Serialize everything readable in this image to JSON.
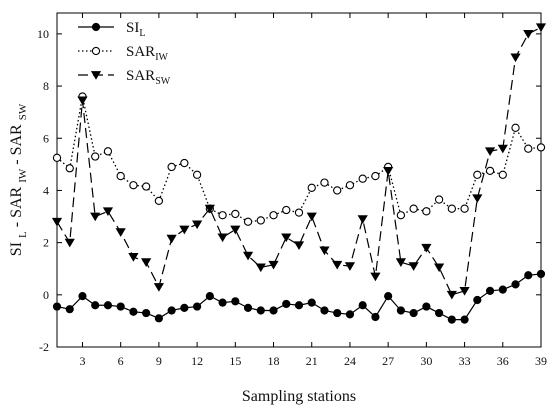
{
  "chart_data": {
    "type": "line",
    "xlabel": "Sampling stations",
    "ylabel_parts": {
      "si": "SI",
      "si_sub": "L",
      "sep1": " - SAR",
      "iw_sub": "IW",
      "sep2": " - SAR",
      "sw_sub": "SW"
    },
    "xlim": [
      1,
      39
    ],
    "ylim": [
      -2,
      10.8
    ],
    "xticks": [
      3,
      6,
      9,
      12,
      15,
      18,
      21,
      24,
      27,
      30,
      33,
      36,
      39
    ],
    "yticks": [
      -2,
      0,
      2,
      4,
      6,
      8,
      10
    ],
    "x": [
      1,
      2,
      3,
      4,
      5,
      6,
      7,
      8,
      9,
      10,
      11,
      12,
      13,
      14,
      15,
      16,
      17,
      18,
      19,
      20,
      21,
      22,
      23,
      24,
      25,
      26,
      27,
      28,
      29,
      30,
      31,
      32,
      33,
      34,
      35,
      36,
      37,
      38,
      39
    ],
    "legend_position": "top-left",
    "series": [
      {
        "name_main": "SI",
        "name_sub": "L",
        "style": "solid",
        "marker": "filled-circle",
        "color": "#000000",
        "values": [
          -0.45,
          -0.55,
          -0.05,
          -0.4,
          -0.4,
          -0.45,
          -0.65,
          -0.7,
          -0.9,
          -0.6,
          -0.5,
          -0.45,
          -0.05,
          -0.3,
          -0.25,
          -0.5,
          -0.6,
          -0.6,
          -0.35,
          -0.4,
          -0.3,
          -0.6,
          -0.7,
          -0.75,
          -0.4,
          -0.85,
          -0.05,
          -0.6,
          -0.7,
          -0.45,
          -0.7,
          -0.95,
          -0.95,
          -0.2,
          0.15,
          0.2,
          0.4,
          0.75,
          0.8
        ]
      },
      {
        "name_main": "SAR",
        "name_sub": "IW",
        "style": "dotted",
        "marker": "open-circle",
        "color": "#000000",
        "values": [
          5.25,
          4.85,
          7.6,
          5.3,
          5.5,
          4.55,
          4.2,
          4.15,
          3.6,
          4.9,
          5.05,
          4.6,
          3.3,
          3.05,
          3.1,
          2.8,
          2.85,
          3.05,
          3.25,
          3.15,
          4.1,
          4.3,
          4.0,
          4.2,
          4.45,
          4.55,
          4.9,
          3.05,
          3.3,
          3.2,
          3.65,
          3.3,
          3.3,
          4.6,
          4.75,
          4.6,
          6.4,
          5.6,
          5.65
        ]
      },
      {
        "name_main": "SAR",
        "name_sub": "SW",
        "style": "dashed",
        "marker": "filled-triangle-down",
        "color": "#000000",
        "values": [
          2.8,
          2.0,
          7.45,
          3.0,
          3.2,
          2.4,
          1.45,
          1.25,
          0.3,
          2.15,
          2.5,
          2.7,
          3.3,
          2.2,
          2.5,
          1.5,
          1.05,
          1.15,
          2.2,
          1.9,
          3.0,
          1.7,
          1.15,
          1.1,
          2.9,
          0.7,
          4.75,
          1.25,
          1.1,
          1.8,
          1.05,
          0.0,
          0.15,
          3.7,
          5.5,
          5.6,
          9.1,
          10.0,
          10.25
        ]
      }
    ]
  }
}
